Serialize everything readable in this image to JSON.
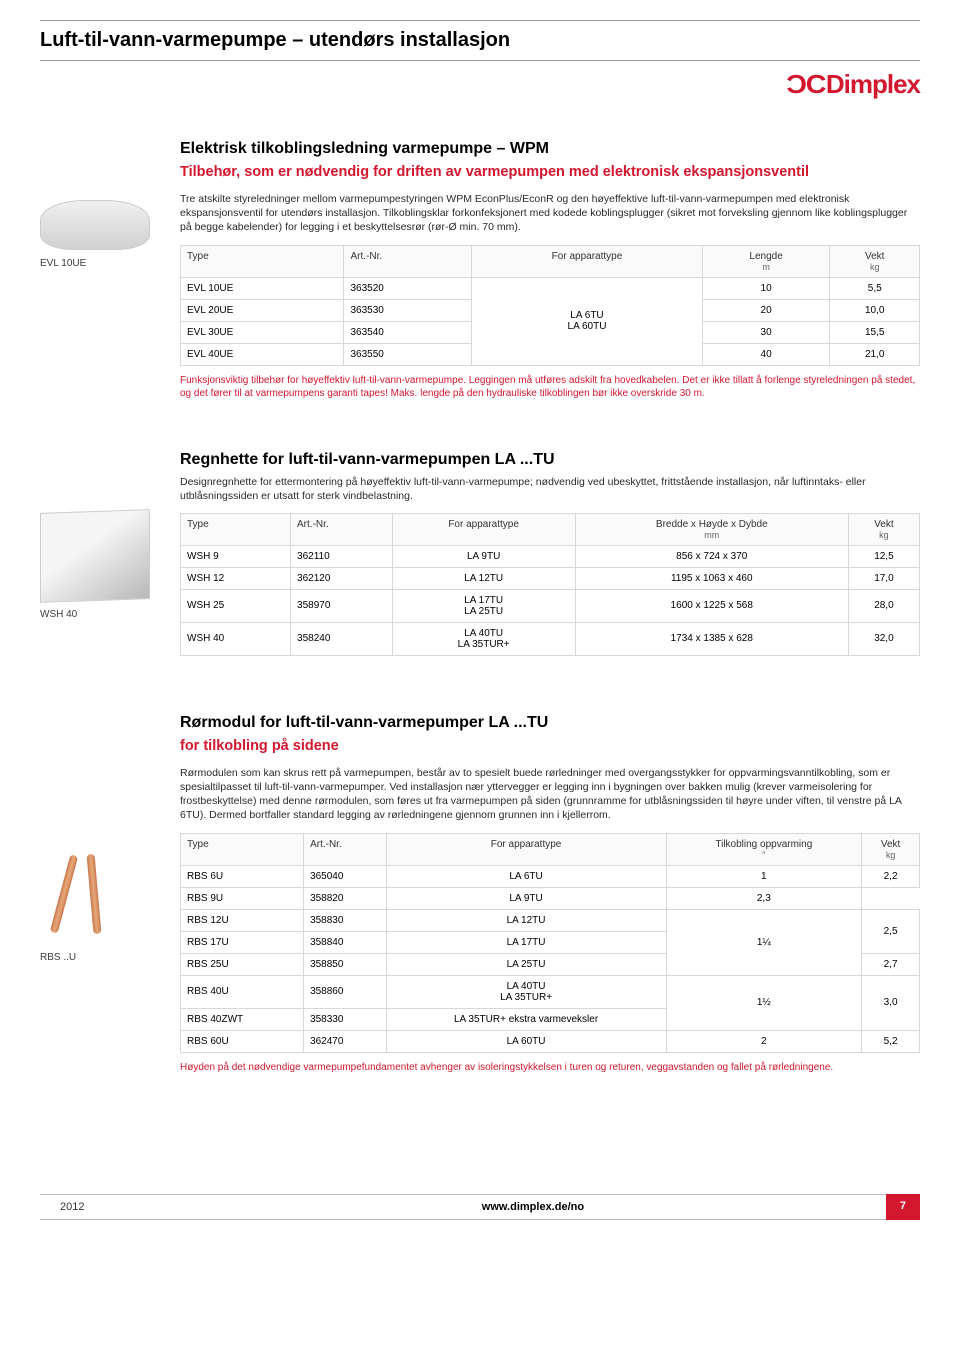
{
  "page_title": "Luft-til-vann-varmepumpe – utendørs installasjon",
  "brand": "Dimplex",
  "section1": {
    "thumb_label": "EVL 10UE",
    "title": "Elektrisk tilkoblingsledning varmepumpe – WPM",
    "subtitle": "Tilbehør, som er nødvendig for driften av varmepumpen med elektronisk ekspansjonsventil",
    "desc": "Tre atskilte styreledninger mellom varmepumpestyringen WPM EconPlus/EconR og den høyeffektive luft-til-vann-varmepumpen med elektronisk ekspansjonsventil for utendørs installasjon. Tilkoblingsklar forkonfeksjonert med kodede koblingsplugger (sikret mot forveksling gjennom like koblingsplugger på begge kabelender) for legging i et beskyttelsesrør (rør-Ø min. 70 mm).",
    "headers": {
      "type": "Type",
      "art": "Art.-Nr.",
      "for": "For apparattype",
      "len": "Lengde",
      "len_unit": "m",
      "wt": "Vekt",
      "wt_unit": "kg"
    },
    "shared_for": "LA 6TU\nLA 60TU",
    "rows": [
      {
        "type": "EVL 10UE",
        "art": "363520",
        "len": "10",
        "wt": "5,5"
      },
      {
        "type": "EVL 20UE",
        "art": "363530",
        "len": "20",
        "wt": "10,0"
      },
      {
        "type": "EVL 30UE",
        "art": "363540",
        "len": "30",
        "wt": "15,5"
      },
      {
        "type": "EVL 40UE",
        "art": "363550",
        "len": "40",
        "wt": "21,0"
      }
    ],
    "footnote": "Funksjonsviktig tilbehør for høyeffektiv luft-til-vann-varmepumpe. Leggingen må utføres adskilt fra hovedkabelen. Det er ikke tillatt å forlenge styreledningen på stedet, og det fører til at varmepumpens garanti tapes! Maks. lengde på den hydrauliske tilkoblingen bør ikke overskride 30 m."
  },
  "section2": {
    "thumb_label": "WSH 40",
    "title": "Regnhette for luft-til-vann-varmepumpen LA ...TU",
    "desc": "Designregnhette for ettermontering på høyeffektiv luft-til-vann-varmepumpe; nødvendig ved ubeskyttet, frittstående installasjon, når luftinntaks- eller utblåsningssiden er utsatt for sterk vindbelastning.",
    "headers": {
      "type": "Type",
      "art": "Art.-Nr.",
      "for": "For apparattype",
      "dim": "Bredde x Høyde x Dybde",
      "dim_unit": "mm",
      "wt": "Vekt",
      "wt_unit": "kg"
    },
    "rows": [
      {
        "type": "WSH 9",
        "art": "362110",
        "for": "LA 9TU",
        "dim": "856 x 724 x 370",
        "wt": "12,5"
      },
      {
        "type": "WSH 12",
        "art": "362120",
        "for": "LA 12TU",
        "dim": "1195 x 1063 x 460",
        "wt": "17,0"
      },
      {
        "type": "WSH 25",
        "art": "358970",
        "for": "LA 17TU\nLA 25TU",
        "dim": "1600 x 1225 x 568",
        "wt": "28,0"
      },
      {
        "type": "WSH 40",
        "art": "358240",
        "for": "LA 40TU\nLA 35TUR+",
        "dim": "1734 x 1385 x 628",
        "wt": "32,0"
      }
    ]
  },
  "section3": {
    "thumb_label": "RBS ..U",
    "title": "Rørmodul for luft-til-vann-varmepumper LA ...TU",
    "subtitle": "for tilkobling på sidene",
    "desc": "Rørmodulen som kan skrus rett på varmepumpen, består av to spesielt buede rørledninger med overgangsstykker for oppvarmingsvanntilkobling, som er spesialtilpasset til luft-til-vann-varmepumper. Ved installasjon nær yttervegger er legging inn i bygningen over bakken mulig (krever varmeisolering for frostbeskyttelse) med denne rørmodulen, som føres ut fra varmepumpen på siden (grunnramme for utblåsningssiden til høyre under viften, til venstre på LA 6TU). Dermed bortfaller standard legging av rørledningene gjennom grunnen inn i kjellerrom.",
    "headers": {
      "type": "Type",
      "art": "Art.-Nr.",
      "for": "For apparattype",
      "conn": "Tilkobling oppvarming",
      "conn_unit": "\"",
      "wt": "Vekt",
      "wt_unit": "kg"
    },
    "rows": [
      {
        "type": "RBS 6U",
        "art": "365040",
        "for": "LA 6TU",
        "conn": "1",
        "wt": "2,2",
        "conn_span": 1,
        "wt_span": 1
      },
      {
        "type": "RBS 9U",
        "art": "358820",
        "for": "LA 9TU",
        "conn": "",
        "wt": "2,3",
        "conn_span": 0,
        "wt_span": 1
      },
      {
        "type": "RBS 12U",
        "art": "358830",
        "for": "LA 12TU",
        "conn": "1¼",
        "wt": "2,5",
        "conn_span": 3,
        "wt_span": 2
      },
      {
        "type": "RBS 17U",
        "art": "358840",
        "for": "LA 17TU",
        "conn": "",
        "wt": "",
        "conn_span": 0,
        "wt_span": 0
      },
      {
        "type": "RBS 25U",
        "art": "358850",
        "for": "LA 25TU",
        "conn": "",
        "wt": "2,7",
        "conn_span": 0,
        "wt_span": 1
      },
      {
        "type": "RBS 40U",
        "art": "358860",
        "for": "LA 40TU\nLA 35TUR+",
        "conn": "1½",
        "wt": "3,0",
        "conn_span": 2,
        "wt_span": 2
      },
      {
        "type": "RBS 40ZWT",
        "art": "358330",
        "for": "LA 35TUR+ ekstra varmeveksler",
        "conn": "",
        "wt": "",
        "conn_span": 0,
        "wt_span": 0
      },
      {
        "type": "RBS 60U",
        "art": "362470",
        "for": "LA 60TU",
        "conn": "2",
        "wt": "5,2",
        "conn_span": 1,
        "wt_span": 1
      }
    ],
    "footnote": "Høyden på det nødvendige varmepumpefundamentet avhenger av isoleringstykkelsen i turen og returen, veggavstanden og fallet på rørledningene."
  },
  "footer": {
    "year": "2012",
    "url": "www.dimplex.de/no",
    "page": "7"
  }
}
